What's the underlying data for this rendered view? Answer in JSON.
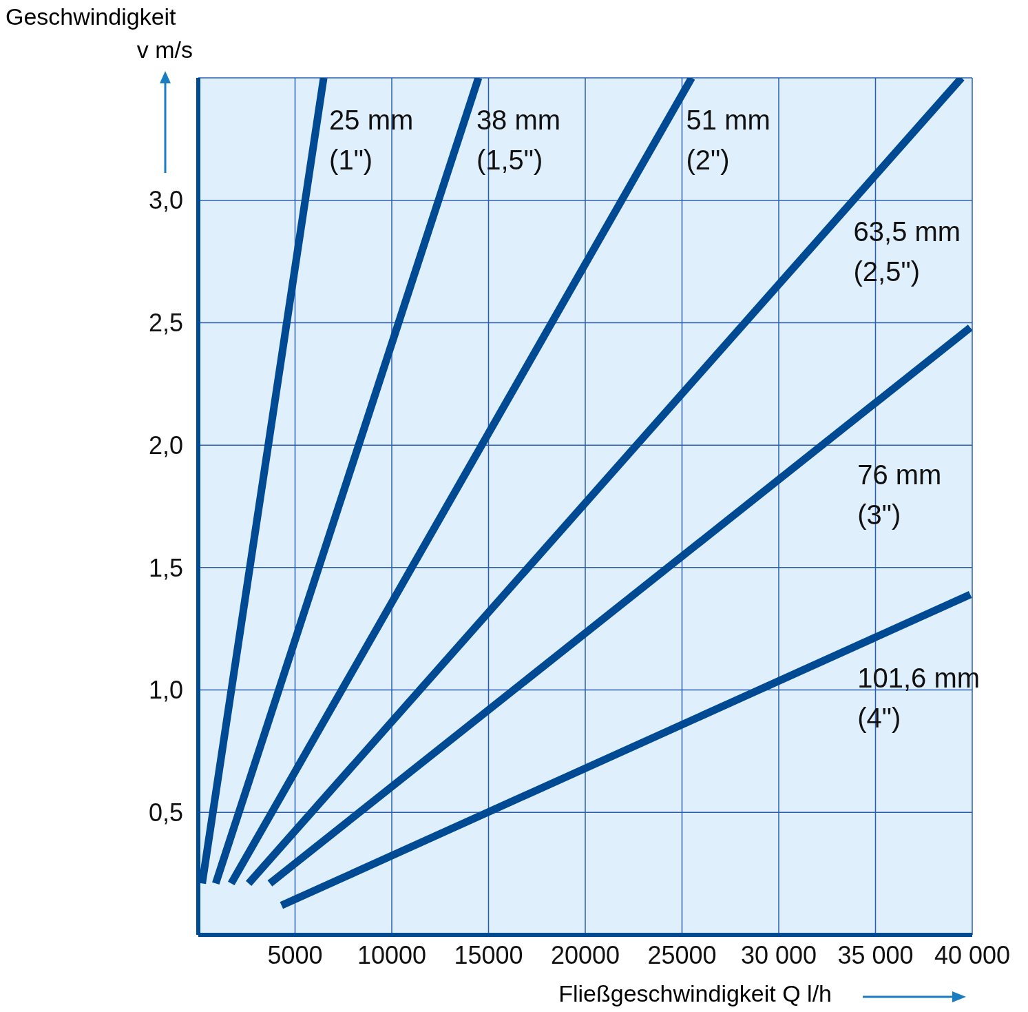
{
  "chart_data": {
    "type": "line",
    "xlabel": "Fließgeschwindigkeit Q l/h",
    "ylabel": "Geschwindigkeit v m/s",
    "xlim": [
      0,
      40000
    ],
    "ylim": [
      0,
      3.5
    ],
    "xticks": [
      5000,
      10000,
      15000,
      20000,
      25000,
      {
        "value": 30000,
        "label": "30 000"
      },
      {
        "value": 35000,
        "label": "35 000"
      },
      {
        "value": 40000,
        "label": "40 000"
      }
    ],
    "yticks": [
      {
        "value": 0.5,
        "label": "0,5"
      },
      {
        "value": 1,
        "label": "1,0"
      },
      {
        "value": 1.5,
        "label": "1,5"
      },
      {
        "value": 2,
        "label": "2,0"
      },
      {
        "value": 2.5,
        "label": "2,5"
      },
      {
        "value": 3,
        "label": "3,0"
      },
      {
        "value": 3.5,
        "label": null
      }
    ],
    "grid": true,
    "marker": "none",
    "line_style": "solid",
    "series": [
      {
        "name": "25 mm (1\")",
        "color": "#004a93",
        "x": [
          200,
          6480
        ],
        "values": [
          0.21,
          3.5
        ]
      },
      {
        "name": "38 mm (1,5\")",
        "color": "#004a93",
        "x": [
          900,
          14480
        ],
        "values": [
          0.21,
          3.5
        ]
      },
      {
        "name": "51 mm (2\")",
        "color": "#004a93",
        "x": [
          1700,
          25500
        ],
        "values": [
          0.21,
          3.5
        ]
      },
      {
        "name": "63,5 mm (2,5\")",
        "color": "#004a93",
        "x": [
          2600,
          39450
        ],
        "values": [
          0.21,
          3.5
        ]
      },
      {
        "name": "76 mm (3\")",
        "color": "#004a93",
        "x": [
          3700,
          39900
        ],
        "values": [
          0.21,
          2.48
        ]
      },
      {
        "name": "101,6 mm (4\")",
        "color": "#004a93",
        "x": [
          4300,
          39900
        ],
        "values": [
          0.12,
          1.39
        ]
      }
    ]
  }
}
